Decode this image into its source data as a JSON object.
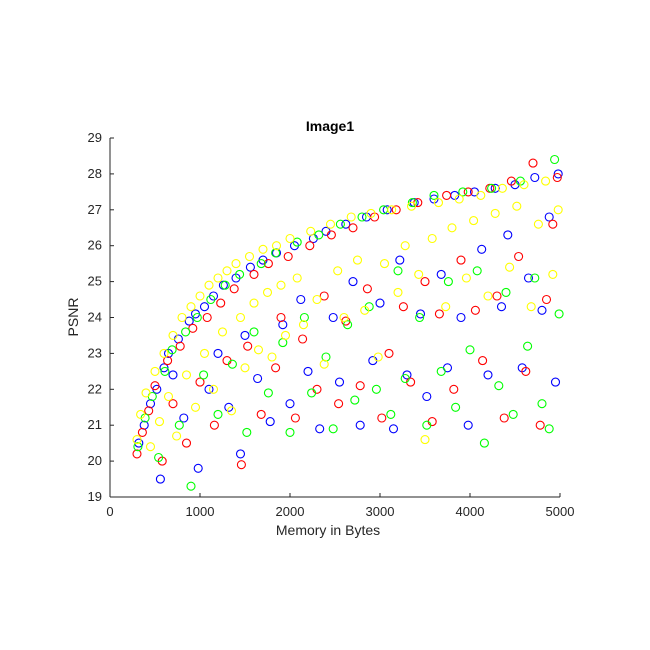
{
  "chart_data": {
    "type": "scatter",
    "title": "Image1",
    "xlabel": "Memory in Bytes",
    "ylabel": "PSNR",
    "xlim": [
      0,
      5000
    ],
    "ylim": [
      19,
      29
    ],
    "xticks": [
      0,
      1000,
      2000,
      3000,
      4000,
      5000
    ],
    "yticks": [
      19,
      20,
      21,
      22,
      23,
      24,
      25,
      26,
      27,
      28,
      29
    ],
    "grid": false,
    "legend": "none",
    "marker": "open-circle",
    "series": [
      {
        "color": "#0000ff",
        "points": [
          [
            320,
            20.5
          ],
          [
            380,
            21.0
          ],
          [
            450,
            21.6
          ],
          [
            520,
            22.0
          ],
          [
            560,
            19.5
          ],
          [
            600,
            22.6
          ],
          [
            650,
            23.0
          ],
          [
            700,
            22.4
          ],
          [
            760,
            23.4
          ],
          [
            820,
            21.2
          ],
          [
            880,
            23.9
          ],
          [
            950,
            24.1
          ],
          [
            980,
            19.8
          ],
          [
            1050,
            24.3
          ],
          [
            1100,
            22.0
          ],
          [
            1150,
            24.6
          ],
          [
            1200,
            23.0
          ],
          [
            1260,
            24.9
          ],
          [
            1320,
            21.5
          ],
          [
            1400,
            25.1
          ],
          [
            1450,
            20.2
          ],
          [
            1500,
            23.5
          ],
          [
            1560,
            25.4
          ],
          [
            1640,
            22.3
          ],
          [
            1700,
            25.6
          ],
          [
            1780,
            21.1
          ],
          [
            1850,
            25.8
          ],
          [
            1920,
            23.8
          ],
          [
            2000,
            21.6
          ],
          [
            2050,
            26.0
          ],
          [
            2120,
            24.5
          ],
          [
            2200,
            22.5
          ],
          [
            2260,
            26.2
          ],
          [
            2330,
            20.9
          ],
          [
            2400,
            26.4
          ],
          [
            2480,
            24.0
          ],
          [
            2550,
            22.2
          ],
          [
            2620,
            26.6
          ],
          [
            2700,
            25.0
          ],
          [
            2780,
            21.0
          ],
          [
            2850,
            26.8
          ],
          [
            2920,
            22.8
          ],
          [
            3000,
            24.4
          ],
          [
            3080,
            27.0
          ],
          [
            3150,
            20.9
          ],
          [
            3220,
            25.6
          ],
          [
            3300,
            22.4
          ],
          [
            3380,
            27.2
          ],
          [
            3450,
            24.1
          ],
          [
            3520,
            21.8
          ],
          [
            3600,
            27.3
          ],
          [
            3680,
            25.2
          ],
          [
            3750,
            22.6
          ],
          [
            3830,
            27.4
          ],
          [
            3900,
            24.0
          ],
          [
            3980,
            21.0
          ],
          [
            4050,
            27.5
          ],
          [
            4130,
            25.9
          ],
          [
            4200,
            22.4
          ],
          [
            4280,
            27.6
          ],
          [
            4350,
            24.3
          ],
          [
            4420,
            26.3
          ],
          [
            4500,
            27.7
          ],
          [
            4580,
            22.6
          ],
          [
            4650,
            25.1
          ],
          [
            4720,
            27.9
          ],
          [
            4800,
            24.2
          ],
          [
            4880,
            26.8
          ],
          [
            4950,
            22.2
          ],
          [
            4980,
            28.0
          ]
        ]
      },
      {
        "color": "#ff0000",
        "points": [
          [
            300,
            20.2
          ],
          [
            360,
            20.8
          ],
          [
            430,
            21.4
          ],
          [
            500,
            22.1
          ],
          [
            580,
            20.0
          ],
          [
            640,
            22.8
          ],
          [
            700,
            21.6
          ],
          [
            780,
            23.2
          ],
          [
            850,
            20.5
          ],
          [
            920,
            23.7
          ],
          [
            1000,
            22.2
          ],
          [
            1080,
            24.0
          ],
          [
            1160,
            21.0
          ],
          [
            1230,
            24.4
          ],
          [
            1300,
            22.8
          ],
          [
            1380,
            24.8
          ],
          [
            1460,
            19.9
          ],
          [
            1530,
            23.2
          ],
          [
            1600,
            25.2
          ],
          [
            1680,
            21.3
          ],
          [
            1760,
            25.5
          ],
          [
            1840,
            22.6
          ],
          [
            1900,
            24.0
          ],
          [
            1980,
            25.7
          ],
          [
            2060,
            21.2
          ],
          [
            2140,
            23.4
          ],
          [
            2220,
            26.0
          ],
          [
            2300,
            22.0
          ],
          [
            2380,
            24.6
          ],
          [
            2460,
            26.3
          ],
          [
            2540,
            21.6
          ],
          [
            2620,
            23.9
          ],
          [
            2700,
            26.5
          ],
          [
            2780,
            22.1
          ],
          [
            2860,
            24.8
          ],
          [
            2940,
            26.8
          ],
          [
            3020,
            21.2
          ],
          [
            3100,
            23.0
          ],
          [
            3180,
            27.0
          ],
          [
            3260,
            24.3
          ],
          [
            3340,
            22.2
          ],
          [
            3420,
            27.2
          ],
          [
            3500,
            25.0
          ],
          [
            3580,
            21.1
          ],
          [
            3660,
            24.1
          ],
          [
            3740,
            27.4
          ],
          [
            3820,
            22.0
          ],
          [
            3900,
            25.6
          ],
          [
            3980,
            27.5
          ],
          [
            4060,
            24.2
          ],
          [
            4140,
            22.8
          ],
          [
            4220,
            27.6
          ],
          [
            4300,
            24.6
          ],
          [
            4380,
            21.2
          ],
          [
            4460,
            27.8
          ],
          [
            4540,
            25.7
          ],
          [
            4620,
            22.5
          ],
          [
            4700,
            28.3
          ],
          [
            4780,
            21.0
          ],
          [
            4850,
            24.5
          ],
          [
            4920,
            26.6
          ],
          [
            4970,
            27.9
          ]
        ]
      },
      {
        "color": "#00ff00",
        "points": [
          [
            310,
            20.4
          ],
          [
            390,
            21.2
          ],
          [
            470,
            21.8
          ],
          [
            540,
            20.1
          ],
          [
            610,
            22.5
          ],
          [
            690,
            23.1
          ],
          [
            770,
            21.0
          ],
          [
            840,
            23.6
          ],
          [
            900,
            19.3
          ],
          [
            970,
            24.0
          ],
          [
            1040,
            22.4
          ],
          [
            1120,
            24.5
          ],
          [
            1200,
            21.3
          ],
          [
            1280,
            24.9
          ],
          [
            1360,
            22.7
          ],
          [
            1440,
            25.2
          ],
          [
            1520,
            20.8
          ],
          [
            1600,
            23.6
          ],
          [
            1680,
            25.5
          ],
          [
            1760,
            21.9
          ],
          [
            1840,
            25.8
          ],
          [
            1920,
            23.3
          ],
          [
            2000,
            20.8
          ],
          [
            2080,
            26.1
          ],
          [
            2160,
            24.0
          ],
          [
            2240,
            21.9
          ],
          [
            2320,
            26.3
          ],
          [
            2400,
            22.9
          ],
          [
            2480,
            20.9
          ],
          [
            2560,
            26.6
          ],
          [
            2640,
            23.8
          ],
          [
            2720,
            21.7
          ],
          [
            2800,
            26.8
          ],
          [
            2880,
            24.3
          ],
          [
            2960,
            22.0
          ],
          [
            3040,
            27.0
          ],
          [
            3120,
            21.3
          ],
          [
            3200,
            25.3
          ],
          [
            3280,
            22.3
          ],
          [
            3360,
            27.2
          ],
          [
            3440,
            24.0
          ],
          [
            3520,
            21.0
          ],
          [
            3600,
            27.4
          ],
          [
            3680,
            22.5
          ],
          [
            3760,
            25.0
          ],
          [
            3840,
            21.5
          ],
          [
            3920,
            27.5
          ],
          [
            4000,
            23.1
          ],
          [
            4080,
            25.3
          ],
          [
            4160,
            20.5
          ],
          [
            4240,
            27.6
          ],
          [
            4320,
            22.1
          ],
          [
            4400,
            24.7
          ],
          [
            4480,
            21.3
          ],
          [
            4560,
            27.8
          ],
          [
            4640,
            23.2
          ],
          [
            4720,
            25.1
          ],
          [
            4800,
            21.6
          ],
          [
            4880,
            20.9
          ],
          [
            4940,
            28.4
          ],
          [
            4990,
            24.1
          ]
        ]
      },
      {
        "color": "#ffff00",
        "points": [
          [
            300,
            20.6
          ],
          [
            340,
            21.3
          ],
          [
            400,
            21.9
          ],
          [
            450,
            20.4
          ],
          [
            500,
            22.5
          ],
          [
            550,
            21.1
          ],
          [
            600,
            23.0
          ],
          [
            650,
            21.8
          ],
          [
            700,
            23.5
          ],
          [
            740,
            20.7
          ],
          [
            800,
            24.0
          ],
          [
            850,
            22.4
          ],
          [
            900,
            24.3
          ],
          [
            950,
            21.5
          ],
          [
            1000,
            24.6
          ],
          [
            1050,
            23.0
          ],
          [
            1100,
            24.9
          ],
          [
            1150,
            22.0
          ],
          [
            1200,
            25.1
          ],
          [
            1250,
            23.6
          ],
          [
            1300,
            25.3
          ],
          [
            1350,
            21.4
          ],
          [
            1400,
            25.5
          ],
          [
            1450,
            24.0
          ],
          [
            1500,
            22.6
          ],
          [
            1550,
            25.7
          ],
          [
            1600,
            24.4
          ],
          [
            1650,
            23.1
          ],
          [
            1700,
            25.9
          ],
          [
            1750,
            24.7
          ],
          [
            1800,
            22.9
          ],
          [
            1850,
            26.0
          ],
          [
            1900,
            24.9
          ],
          [
            1950,
            23.5
          ],
          [
            2000,
            26.2
          ],
          [
            2080,
            25.1
          ],
          [
            2150,
            23.8
          ],
          [
            2230,
            26.4
          ],
          [
            2300,
            24.5
          ],
          [
            2380,
            22.7
          ],
          [
            2450,
            26.6
          ],
          [
            2530,
            25.3
          ],
          [
            2600,
            24.0
          ],
          [
            2680,
            26.8
          ],
          [
            2750,
            25.6
          ],
          [
            2830,
            24.2
          ],
          [
            2900,
            26.9
          ],
          [
            2980,
            22.9
          ],
          [
            3050,
            25.5
          ],
          [
            3130,
            27.0
          ],
          [
            3200,
            24.7
          ],
          [
            3280,
            26.0
          ],
          [
            3350,
            27.1
          ],
          [
            3430,
            25.2
          ],
          [
            3500,
            20.6
          ],
          [
            3580,
            26.2
          ],
          [
            3650,
            27.2
          ],
          [
            3730,
            24.3
          ],
          [
            3800,
            26.5
          ],
          [
            3880,
            27.3
          ],
          [
            3960,
            25.1
          ],
          [
            4040,
            26.7
          ],
          [
            4120,
            27.4
          ],
          [
            4200,
            24.6
          ],
          [
            4280,
            26.9
          ],
          [
            4360,
            27.6
          ],
          [
            4440,
            25.4
          ],
          [
            4520,
            27.1
          ],
          [
            4600,
            27.7
          ],
          [
            4680,
            24.3
          ],
          [
            4760,
            26.6
          ],
          [
            4840,
            27.8
          ],
          [
            4920,
            25.2
          ],
          [
            4980,
            27.0
          ]
        ]
      }
    ]
  }
}
